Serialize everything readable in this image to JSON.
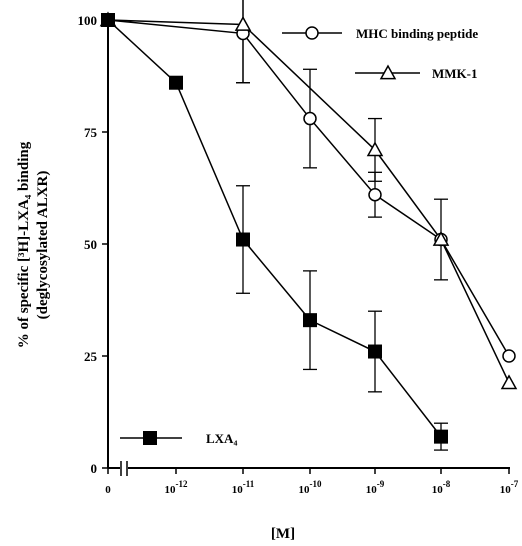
{
  "chart_data": {
    "type": "line",
    "title": "",
    "xlabel": "[M]",
    "ylabel_line1": "% of specific [³H]-LXA₄ binding",
    "ylabel_line2": "(deglycosylated ALXR)",
    "ylim": [
      0,
      100
    ],
    "y_ticks": [
      "0",
      "25",
      "50",
      "75",
      "100"
    ],
    "y_tick_values": [
      0,
      25,
      50,
      75,
      100
    ],
    "x_tick_labels": [
      {
        "base": "0",
        "exp": ""
      },
      {
        "base": "10",
        "exp": "-12"
      },
      {
        "base": "10",
        "exp": "-11"
      },
      {
        "base": "10",
        "exp": "-10"
      },
      {
        "base": "10",
        "exp": "-9"
      },
      {
        "base": "10",
        "exp": "-8"
      },
      {
        "base": "10",
        "exp": "-7"
      }
    ],
    "x_axis_break": true,
    "x_scale": "log",
    "series": [
      {
        "name": "MHC binding peptide",
        "marker": "circle-open",
        "points": [
          {
            "x": "0",
            "y": 100,
            "err": 0
          },
          {
            "x": "10^-11",
            "y": 97,
            "err": 11
          },
          {
            "x": "10^-10",
            "y": 78,
            "err": 11
          },
          {
            "x": "10^-9",
            "y": 61,
            "err": 5
          },
          {
            "x": "10^-8",
            "y": 51,
            "err": 9
          },
          {
            "x": "10^-7",
            "y": 25,
            "err": 0
          }
        ]
      },
      {
        "name": "MMK-1",
        "marker": "triangle-open",
        "points": [
          {
            "x": "0",
            "y": 100,
            "err": 0
          },
          {
            "x": "10^-11",
            "y": 99,
            "err": 13
          },
          {
            "x": "10^-9",
            "y": 71,
            "err": 7
          },
          {
            "x": "10^-8",
            "y": 51,
            "err": 0
          },
          {
            "x": "10^-7",
            "y": 19,
            "err": 0
          }
        ]
      },
      {
        "name": "LXA₄",
        "marker": "square-filled",
        "points": [
          {
            "x": "0",
            "y": 100,
            "err": 0
          },
          {
            "x": "10^-12",
            "y": 86,
            "err": 0
          },
          {
            "x": "10^-11",
            "y": 51,
            "err": 12
          },
          {
            "x": "10^-10",
            "y": 33,
            "err": 11
          },
          {
            "x": "10^-9",
            "y": 26,
            "err": 9
          },
          {
            "x": "10^-8",
            "y": 7,
            "err": 3
          }
        ]
      }
    ],
    "legend": [
      {
        "series": 0,
        "label": "MHC binding peptide",
        "placement": "top-right"
      },
      {
        "series": 1,
        "label": "MMK-1",
        "placement": "upper-right"
      },
      {
        "series": 2,
        "label": "LXA₄",
        "placement": "bottom-left"
      }
    ]
  }
}
